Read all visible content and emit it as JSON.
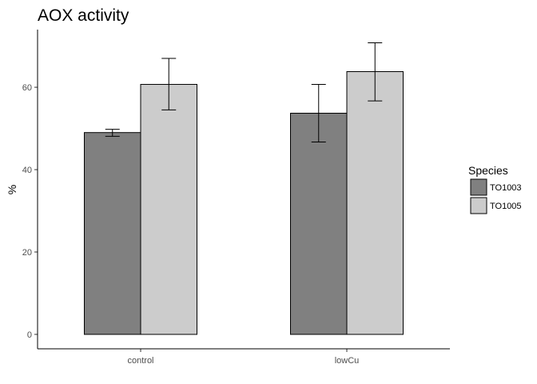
{
  "chart_data": {
    "type": "bar",
    "title": "AOX activity",
    "xlabel": "",
    "ylabel": "%",
    "categories": [
      "control",
      "lowCu"
    ],
    "yticks": [
      0,
      20,
      40,
      60
    ],
    "ylim": [
      -3.5,
      74
    ],
    "grid": false,
    "legend": {
      "title": "Species",
      "position": "right"
    },
    "series": [
      {
        "name": "TO1003",
        "color": "#808080",
        "values": [
          49,
          53.7
        ],
        "error_low": [
          48.1,
          46.7
        ],
        "error_high": [
          49.8,
          60.7
        ]
      },
      {
        "name": "TO1005",
        "color": "#cccccc",
        "values": [
          60.7,
          63.8
        ],
        "error_low": [
          54.5,
          56.7
        ],
        "error_high": [
          67,
          70.8
        ]
      }
    ]
  }
}
